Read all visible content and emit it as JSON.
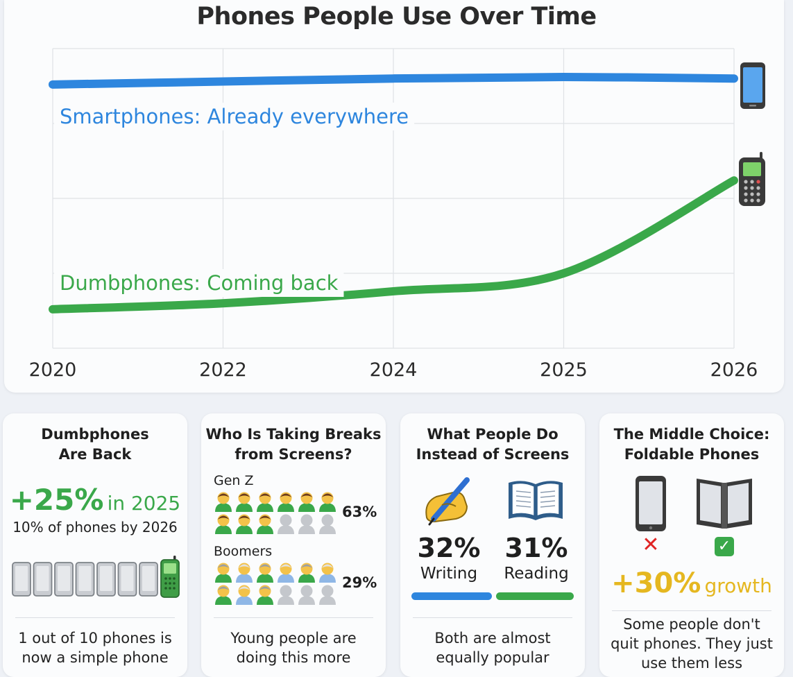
{
  "chart_data": {
    "type": "line",
    "title": "Phones People Use Over Time",
    "x": [
      "2020",
      "2022",
      "2024",
      "2025",
      "2026"
    ],
    "ylim": [
      0,
      100
    ],
    "grid": true,
    "series": [
      {
        "name": "Smartphones: Already everywhere",
        "color": "#2e86de",
        "values": [
          88,
          89,
          90,
          90.5,
          90
        ]
      },
      {
        "name": "Dumbphones: Coming back",
        "color": "#3aa84a",
        "values": [
          13,
          15,
          19,
          25,
          56
        ]
      }
    ]
  },
  "cards": [
    {
      "title_lines": [
        "Dumbphones",
        "Are Back"
      ],
      "stat_big": "+25%",
      "stat_small": "in 2025",
      "sub": "10% of phones by 2026",
      "footer_lines": [
        "1 out of 10 phones is",
        "now a simple phone"
      ]
    },
    {
      "title_lines": [
        "Who Is Taking Breaks",
        "from Screens?"
      ],
      "groups": [
        {
          "label": "Gen Z",
          "percent": "63%",
          "active": 9,
          "total": 12
        },
        {
          "label": "Boomers",
          "percent": "29%",
          "active": 9,
          "total": 12
        }
      ],
      "footer_lines": [
        "Young people are",
        "doing this more"
      ]
    },
    {
      "title_lines": [
        "What People Do",
        "Instead of Screens"
      ],
      "items": [
        {
          "percent": "32%",
          "label": "Writing",
          "value": 32,
          "color": "#2e86de",
          "icon": "writing-hand-icon"
        },
        {
          "percent": "31%",
          "label": "Reading",
          "value": 31,
          "color": "#3aa84a",
          "icon": "open-book-icon"
        }
      ],
      "footer_lines": [
        "Both are almost",
        "equally popular"
      ]
    },
    {
      "title_lines": [
        "The Middle Choice:",
        "Foldable Phones"
      ],
      "stat_big": "+30%",
      "stat_small": "growth",
      "marks": [
        "✕",
        "✓"
      ],
      "footer_lines": [
        "Some people don't",
        "quit phones. They just",
        "use them less"
      ]
    }
  ],
  "colors": {
    "blue": "#2e86de",
    "green": "#3aa84a",
    "yellow": "#e5b720",
    "red": "#e02424"
  }
}
